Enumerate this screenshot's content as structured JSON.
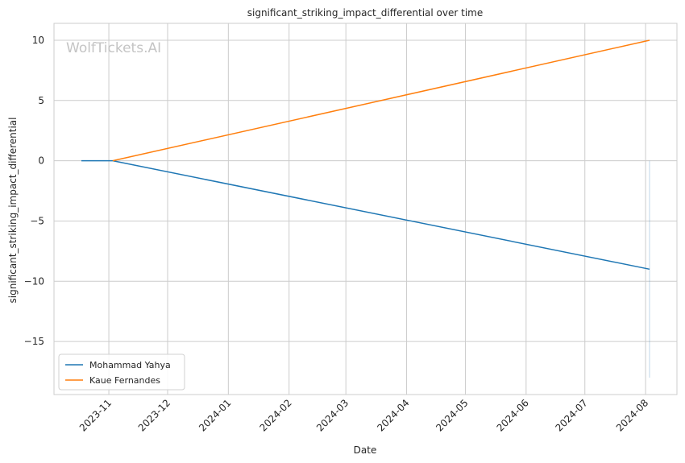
{
  "chart_data": {
    "type": "line",
    "title": "significant_striking_impact_differential over time",
    "xlabel": "Date",
    "ylabel": "significant_striking_impact_differential",
    "watermark": "WolfTickets.AI",
    "x_tick_labels": [
      "2023-11",
      "2023-12",
      "2024-01",
      "2024-02",
      "2024-03",
      "2024-04",
      "2024-05",
      "2024-06",
      "2024-07",
      "2024-08"
    ],
    "x_tick_dates": [
      "2023-11-01",
      "2023-12-01",
      "2024-01-01",
      "2024-02-01",
      "2024-03-01",
      "2024-04-01",
      "2024-05-01",
      "2024-06-01",
      "2024-07-01",
      "2024-08-01"
    ],
    "xlim": [
      "2023-10-04",
      "2024-08-17"
    ],
    "y_ticks": [
      10,
      5,
      0,
      -5,
      -10,
      -15
    ],
    "y_tick_labels": [
      "10",
      "5",
      "0",
      "−5",
      "−10",
      "−15"
    ],
    "ylim": [
      -19.4,
      11.4
    ],
    "grid": true,
    "legend_position": "lower-left",
    "series": [
      {
        "name": "Mohammad Yahya",
        "color": "#1f77b4",
        "points": [
          {
            "x": "2023-10-18",
            "y": 0
          },
          {
            "x": "2023-11-03",
            "y": 0
          },
          {
            "x": "2024-08-03",
            "y": -9
          }
        ]
      },
      {
        "name": "Kaue Fernandes",
        "color": "#ff7f0e",
        "points": [
          {
            "x": "2023-11-03",
            "y": 0
          },
          {
            "x": "2024-08-03",
            "y": 10
          }
        ]
      }
    ],
    "fill_band": {
      "x": "2024-08-03",
      "y_from": 0,
      "y_to": -18,
      "color": "#1f77b4"
    }
  }
}
